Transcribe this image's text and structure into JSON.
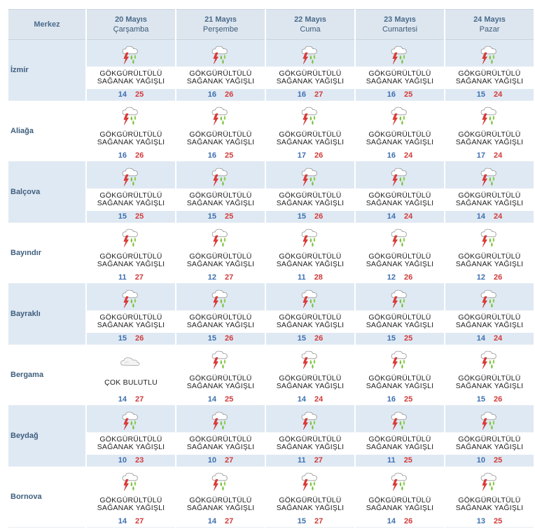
{
  "header": {
    "corner_label": "Merkez",
    "days": [
      {
        "date": "20 Mayıs",
        "weekday": "Çarşamba"
      },
      {
        "date": "21 Mayıs",
        "weekday": "Perşembe"
      },
      {
        "date": "22 Mayıs",
        "weekday": "Cuma"
      },
      {
        "date": "23 Mayıs",
        "weekday": "Cumartesi"
      },
      {
        "date": "24 Mayıs",
        "weekday": "Pazar"
      }
    ]
  },
  "colors": {
    "min_temp": "#3d6fb0",
    "max_temp": "#d23a3a",
    "row_alt": "#dfe9f3",
    "header_bg": "#dde6ef"
  },
  "rows": [
    {
      "city": "İzmir",
      "days": [
        {
          "icon": "thunder-rain-icon",
          "desc": "GÖKGÜRÜLTÜLÜ\nSAĞANAK YAĞIŞLI",
          "min": "14",
          "max": "25"
        },
        {
          "icon": "thunder-rain-icon",
          "desc": "GÖKGÜRÜLTÜLÜ\nSAĞANAK YAĞIŞLI",
          "min": "16",
          "max": "26"
        },
        {
          "icon": "thunder-rain-icon",
          "desc": "GÖKGÜRÜLTÜLÜ\nSAĞANAK YAĞIŞLI",
          "min": "16",
          "max": "27"
        },
        {
          "icon": "thunder-rain-icon",
          "desc": "GÖKGÜRÜLTÜLÜ\nSAĞANAK YAĞIŞLI",
          "min": "16",
          "max": "25"
        },
        {
          "icon": "thunder-rain-icon",
          "desc": "GÖKGÜRÜLTÜLÜ\nSAĞANAK YAĞIŞLI",
          "min": "15",
          "max": "24"
        }
      ]
    },
    {
      "city": "Aliağa",
      "days": [
        {
          "icon": "thunder-rain-icon",
          "desc": "GÖKGÜRÜLTÜLÜ\nSAĞANAK YAĞIŞLI",
          "min": "16",
          "max": "26"
        },
        {
          "icon": "thunder-rain-icon",
          "desc": "GÖKGÜRÜLTÜLÜ\nSAĞANAK YAĞIŞLI",
          "min": "16",
          "max": "25"
        },
        {
          "icon": "thunder-rain-icon",
          "desc": "GÖKGÜRÜLTÜLÜ\nSAĞANAK YAĞIŞLI",
          "min": "17",
          "max": "26"
        },
        {
          "icon": "thunder-rain-icon",
          "desc": "GÖKGÜRÜLTÜLÜ\nSAĞANAK YAĞIŞLI",
          "min": "16",
          "max": "24"
        },
        {
          "icon": "thunder-rain-icon",
          "desc": "GÖKGÜRÜLTÜLÜ\nSAĞANAK YAĞIŞLI",
          "min": "17",
          "max": "24"
        }
      ]
    },
    {
      "city": "Balçova",
      "days": [
        {
          "icon": "thunder-rain-icon",
          "desc": "GÖKGÜRÜLTÜLÜ\nSAĞANAK YAĞIŞLI",
          "min": "15",
          "max": "25"
        },
        {
          "icon": "thunder-rain-icon",
          "desc": "GÖKGÜRÜLTÜLÜ\nSAĞANAK YAĞIŞLI",
          "min": "15",
          "max": "25"
        },
        {
          "icon": "thunder-rain-icon",
          "desc": "GÖKGÜRÜLTÜLÜ\nSAĞANAK YAĞIŞLI",
          "min": "15",
          "max": "26"
        },
        {
          "icon": "thunder-rain-icon",
          "desc": "GÖKGÜRÜLTÜLÜ\nSAĞANAK YAĞIŞLI",
          "min": "14",
          "max": "24"
        },
        {
          "icon": "thunder-rain-icon",
          "desc": "GÖKGÜRÜLTÜLÜ\nSAĞANAK YAĞIŞLI",
          "min": "14",
          "max": "24"
        }
      ]
    },
    {
      "city": "Bayındır",
      "days": [
        {
          "icon": "thunder-rain-icon",
          "desc": "GÖKGÜRÜLTÜLÜ\nSAĞANAK YAĞIŞLI",
          "min": "11",
          "max": "27"
        },
        {
          "icon": "thunder-rain-icon",
          "desc": "GÖKGÜRÜLTÜLÜ\nSAĞANAK YAĞIŞLI",
          "min": "12",
          "max": "27"
        },
        {
          "icon": "thunder-rain-icon",
          "desc": "GÖKGÜRÜLTÜLÜ\nSAĞANAK YAĞIŞLI",
          "min": "11",
          "max": "28"
        },
        {
          "icon": "thunder-rain-icon",
          "desc": "GÖKGÜRÜLTÜLÜ\nSAĞANAK YAĞIŞLI",
          "min": "12",
          "max": "26"
        },
        {
          "icon": "thunder-rain-icon",
          "desc": "GÖKGÜRÜLTÜLÜ\nSAĞANAK YAĞIŞLI",
          "min": "12",
          "max": "26"
        }
      ]
    },
    {
      "city": "Bayraklı",
      "days": [
        {
          "icon": "thunder-rain-icon",
          "desc": "GÖKGÜRÜLTÜLÜ\nSAĞANAK YAĞIŞLI",
          "min": "15",
          "max": "26"
        },
        {
          "icon": "thunder-rain-icon",
          "desc": "GÖKGÜRÜLTÜLÜ\nSAĞANAK YAĞIŞLI",
          "min": "15",
          "max": "26"
        },
        {
          "icon": "thunder-rain-icon",
          "desc": "GÖKGÜRÜLTÜLÜ\nSAĞANAK YAĞIŞLI",
          "min": "15",
          "max": "26"
        },
        {
          "icon": "thunder-rain-icon",
          "desc": "GÖKGÜRÜLTÜLÜ\nSAĞANAK YAĞIŞLI",
          "min": "15",
          "max": "25"
        },
        {
          "icon": "thunder-rain-icon",
          "desc": "GÖKGÜRÜLTÜLÜ\nSAĞANAK YAĞIŞLI",
          "min": "14",
          "max": "24"
        }
      ]
    },
    {
      "city": "Bergama",
      "days": [
        {
          "icon": "cloudy-icon",
          "desc": "ÇOK BULUTLU",
          "min": "14",
          "max": "27"
        },
        {
          "icon": "thunder-rain-icon",
          "desc": "GÖKGÜRÜLTÜLÜ\nSAĞANAK YAĞIŞLI",
          "min": "14",
          "max": "25"
        },
        {
          "icon": "thunder-rain-icon",
          "desc": "GÖKGÜRÜLTÜLÜ\nSAĞANAK YAĞIŞLI",
          "min": "14",
          "max": "24"
        },
        {
          "icon": "thunder-rain-icon",
          "desc": "GÖKGÜRÜLTÜLÜ\nSAĞANAK YAĞIŞLI",
          "min": "16",
          "max": "25"
        },
        {
          "icon": "thunder-rain-icon",
          "desc": "GÖKGÜRÜLTÜLÜ\nSAĞANAK YAĞIŞLI",
          "min": "15",
          "max": "26"
        }
      ]
    },
    {
      "city": "Beydağ",
      "days": [
        {
          "icon": "thunder-rain-icon",
          "desc": "GÖKGÜRÜLTÜLÜ\nSAĞANAK YAĞIŞLI",
          "min": "10",
          "max": "23"
        },
        {
          "icon": "thunder-rain-icon",
          "desc": "GÖKGÜRÜLTÜLÜ\nSAĞANAK YAĞIŞLI",
          "min": "10",
          "max": "27"
        },
        {
          "icon": "thunder-rain-icon",
          "desc": "GÖKGÜRÜLTÜLÜ\nSAĞANAK YAĞIŞLI",
          "min": "11",
          "max": "27"
        },
        {
          "icon": "thunder-rain-icon",
          "desc": "GÖKGÜRÜLTÜLÜ\nSAĞANAK YAĞIŞLI",
          "min": "11",
          "max": "25"
        },
        {
          "icon": "thunder-rain-icon",
          "desc": "GÖKGÜRÜLTÜLÜ\nSAĞANAK YAĞIŞLI",
          "min": "10",
          "max": "25"
        }
      ]
    },
    {
      "city": "Bornova",
      "days": [
        {
          "icon": "thunder-rain-icon",
          "desc": "GÖKGÜRÜLTÜLÜ\nSAĞANAK YAĞIŞLI",
          "min": "14",
          "max": "27"
        },
        {
          "icon": "thunder-rain-icon",
          "desc": "GÖKGÜRÜLTÜLÜ\nSAĞANAK YAĞIŞLI",
          "min": "14",
          "max": "27"
        },
        {
          "icon": "thunder-rain-icon",
          "desc": "GÖKGÜRÜLTÜLÜ\nSAĞANAK YAĞIŞLI",
          "min": "15",
          "max": "27"
        },
        {
          "icon": "thunder-rain-icon",
          "desc": "GÖKGÜRÜLTÜLÜ\nSAĞANAK YAĞIŞLI",
          "min": "14",
          "max": "26"
        },
        {
          "icon": "thunder-rain-icon",
          "desc": "GÖKGÜRÜLTÜLÜ\nSAĞANAK YAĞIŞLI",
          "min": "13",
          "max": "25"
        }
      ]
    }
  ]
}
